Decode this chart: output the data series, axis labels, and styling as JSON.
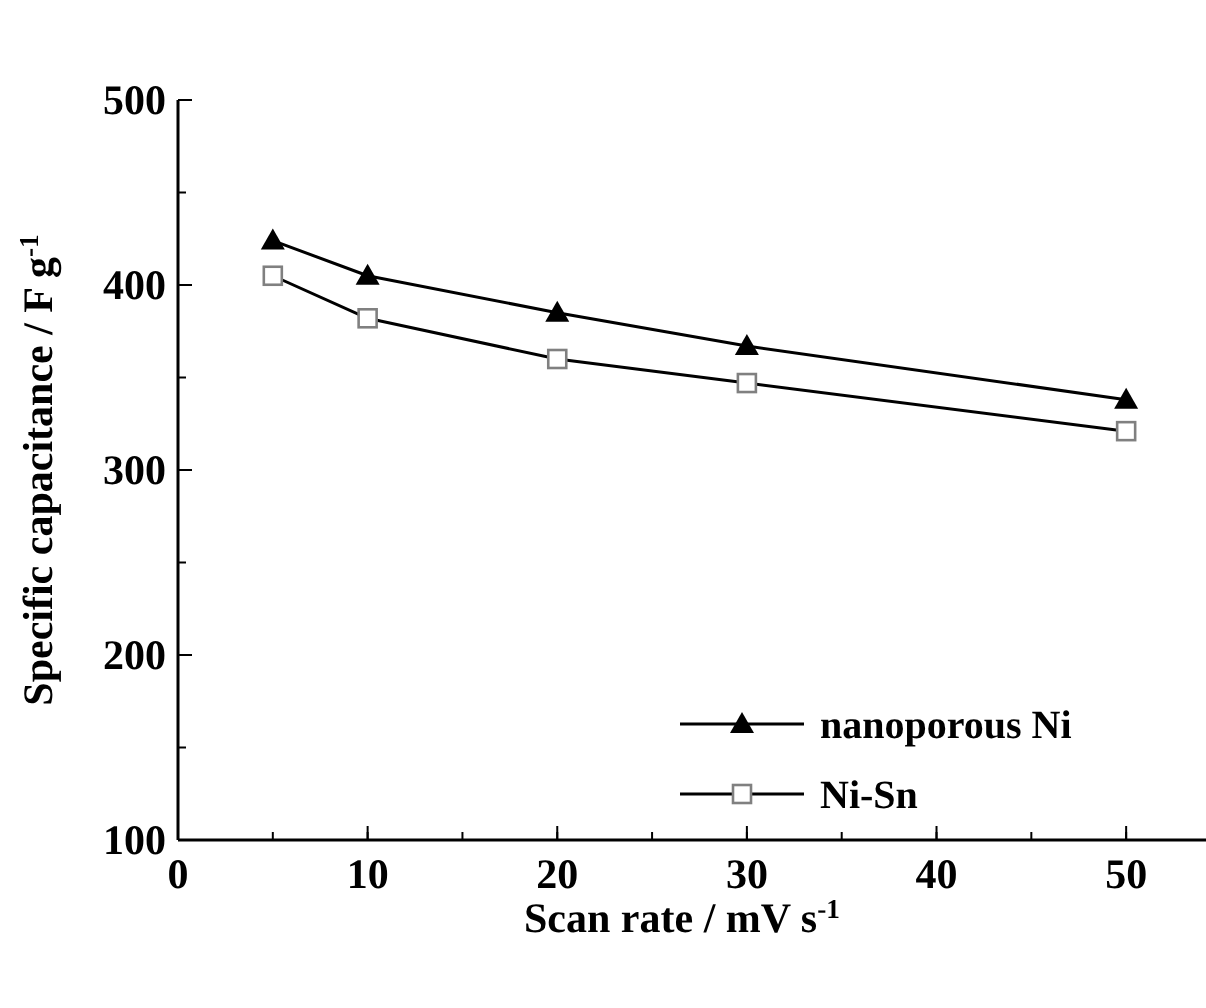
{
  "chart_data": {
    "type": "line",
    "xlabel": "Scan rate / mV s$^{-1}$",
    "ylabel": "Specific capacitance / F g$^{-1}$",
    "x": [
      5,
      10,
      20,
      30,
      50
    ],
    "series": [
      {
        "name": "nanoporous Ni",
        "color": "#000000",
        "marker": "triangle",
        "values": [
          424,
          405,
          385,
          367,
          338
        ]
      },
      {
        "name": "Ni-Sn",
        "color": "#000000",
        "marker": "square",
        "values": [
          405,
          382,
          360,
          347,
          321
        ]
      }
    ],
    "xlim": [
      0,
      54
    ],
    "xticks": [
      0,
      10,
      20,
      30,
      40,
      50
    ],
    "ylim": [
      100,
      500
    ],
    "yticks": [
      100,
      200,
      300,
      400,
      500
    ],
    "legend": "bottom right",
    "grid": false
  }
}
